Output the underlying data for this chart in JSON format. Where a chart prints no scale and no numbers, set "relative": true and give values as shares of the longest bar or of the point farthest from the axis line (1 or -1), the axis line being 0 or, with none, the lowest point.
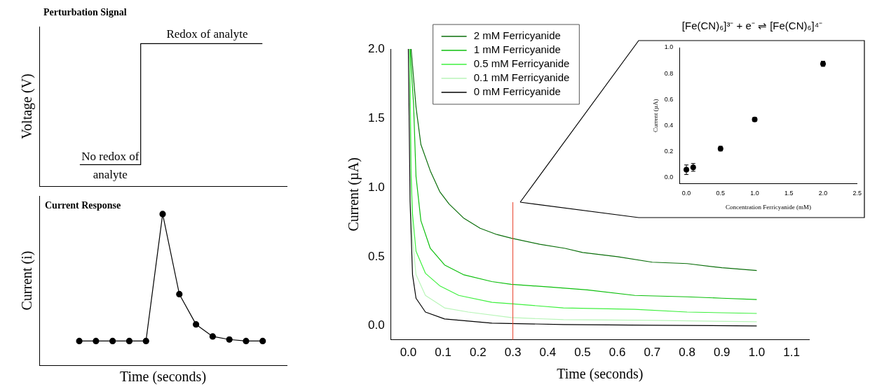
{
  "chart_data": [
    {
      "type": "step",
      "title": "Perturbation Signal",
      "ylabel": "Voltage (V)",
      "relative": true,
      "color": "#000000",
      "categories": [
        null,
        null,
        null,
        null,
        null,
        null,
        null,
        null,
        null,
        null
      ],
      "values": [
        0.15,
        0.15,
        0.15,
        0.15,
        1,
        1,
        1,
        1,
        1,
        1
      ],
      "annotations": [
        "Redox of analyte",
        "No redox of analyte"
      ]
    },
    {
      "type": "line",
      "title": "Current Response",
      "xlabel": "Time (seconds)",
      "ylabel": "Current (i)",
      "relative": true,
      "color": "#000000",
      "marker": "circle",
      "categories": [
        null,
        null,
        null,
        null,
        null,
        null,
        null,
        null,
        null,
        null,
        null,
        null
      ],
      "values": [
        0.16,
        0.16,
        0.16,
        0.16,
        0.16,
        1,
        0.47,
        0.27,
        0.19,
        0.17,
        0.16,
        0.16
      ]
    },
    {
      "type": "line",
      "xlabel": "Time (seconds)",
      "ylabel": "Current (µA)",
      "legend": "top left",
      "xlim": [
        -0.05,
        1.15
      ],
      "xticks": [
        {
          "value": 0,
          "label": "0.0"
        },
        0.1,
        0.2,
        0.3,
        0.4,
        0.5,
        0.6,
        0.7,
        0.8,
        0.9,
        {
          "value": 1,
          "label": "1.0"
        },
        1.1
      ],
      "ylim": [
        -0.1,
        2.0
      ],
      "yticks": [
        {
          "value": 0,
          "label": "0.0"
        },
        0.5,
        {
          "value": 1,
          "label": "1.0"
        },
        1.5,
        {
          "value": 2,
          "label": "2.0"
        }
      ],
      "ref_lines": [
        {
          "axis": "x",
          "value": 0.3,
          "color": "#e8402a"
        }
      ],
      "series": [
        {
          "name": "2 mM Ferricyanide",
          "color": "#0a6e0a",
          "x": [
            0.008,
            0.022,
            0.036,
            0.063,
            0.09,
            0.117,
            0.158,
            0.206,
            0.254,
            0.295,
            0.377,
            0.45,
            0.5,
            0.6,
            0.7,
            0.8,
            0.9,
            1.0
          ],
          "values": [
            2.0,
            1.58,
            1.31,
            1.12,
            0.97,
            0.88,
            0.78,
            0.705,
            0.66,
            0.634,
            0.59,
            0.56,
            0.53,
            0.5,
            0.46,
            0.45,
            0.42,
            0.4
          ]
        },
        {
          "name": "1 mM Ferricyanide",
          "color": "#0cbf0c",
          "x": [
            0.005,
            0.015,
            0.022,
            0.036,
            0.063,
            0.104,
            0.158,
            0.24,
            0.295,
            0.41,
            0.514,
            0.65,
            0.8,
            0.9,
            1.0
          ],
          "values": [
            2.0,
            1.6,
            1.08,
            0.76,
            0.56,
            0.44,
            0.37,
            0.32,
            0.3,
            0.28,
            0.26,
            0.22,
            0.21,
            0.2,
            0.19
          ]
        },
        {
          "name": "0.5 mM Ferricyanide",
          "color": "#3ef03e",
          "x": [
            0.004,
            0.008,
            0.012,
            0.022,
            0.049,
            0.09,
            0.145,
            0.24,
            0.295,
            0.445,
            0.65,
            0.8,
            1.0
          ],
          "values": [
            2.0,
            1.08,
            0.81,
            0.54,
            0.38,
            0.29,
            0.22,
            0.17,
            0.16,
            0.13,
            0.12,
            0.1,
            0.09
          ]
        },
        {
          "name": "0.1 mM Ferricyanide",
          "color": "#b8f5b8",
          "x": [
            0.003,
            0.005,
            0.012,
            0.022,
            0.049,
            0.104,
            0.172,
            0.295,
            0.445,
            0.7,
            1.0
          ],
          "values": [
            2.0,
            1.6,
            0.63,
            0.37,
            0.22,
            0.13,
            0.1,
            0.06,
            0.045,
            0.04,
            0.03
          ]
        },
        {
          "name": "0 mM Ferricyanide",
          "color": "#000000",
          "x": [
            0,
            0.005,
            0.012,
            0.022,
            0.049,
            0.104,
            0.24,
            0.445,
            0.7,
            1.0
          ],
          "values": [
            2.0,
            0.9,
            0.37,
            0.2,
            0.1,
            0.05,
            0.02,
            0.01,
            0.005,
            0.0
          ]
        }
      ]
    },
    {
      "type": "scatter",
      "title": "[Fe(CN)₆]³⁻ + e⁻ ⇌ [Fe(CN)₆]⁴⁻",
      "xlabel": "Concentration Ferricyanide (mM)",
      "ylabel": "Current (µA)",
      "marker": "circle",
      "color": "#000000",
      "xlim": [
        -0.1,
        2.5
      ],
      "xticks": [
        {
          "value": 0,
          "label": "0.0"
        },
        0.5,
        {
          "value": 1,
          "label": "1.0"
        },
        1.5,
        {
          "value": 2,
          "label": "2.0"
        },
        2.5
      ],
      "ylim": [
        -0.05,
        1.0
      ],
      "yticks": [
        {
          "value": 0,
          "label": "0.0"
        },
        0.2,
        0.4,
        0.6,
        0.8,
        {
          "value": 1,
          "label": "1.0"
        }
      ],
      "x": [
        0,
        0.1,
        0.5,
        1,
        2
      ],
      "values": [
        0.057,
        0.075,
        0.22,
        0.445,
        0.875
      ],
      "errors": [
        0.037,
        0.03,
        0.018,
        0.015,
        0.02
      ]
    }
  ]
}
